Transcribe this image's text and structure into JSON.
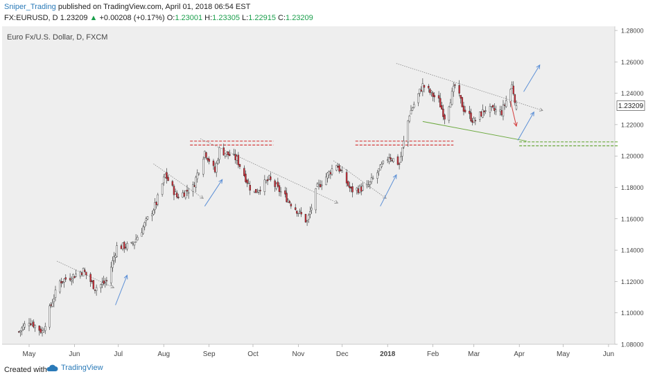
{
  "header": {
    "author": "Sniper_Trading",
    "published_text": "published on TradingView.com, April 01, 2018 06:54 EST",
    "symbol": "FX:EURUSD, D",
    "last": "1.23209",
    "change_arrow": "▲",
    "change": "+0.00208 (+0.17%)",
    "o_label": "O:",
    "o_val": "1.23001",
    "h_label": "H:",
    "h_val": "1.23305",
    "l_label": "L:",
    "l_val": "1.22915",
    "c_label": "C:",
    "c_val": "1.23209"
  },
  "footer": {
    "created_with": "Created with",
    "brand": "TradingView",
    "brand_icon": "tradingview-cloud-icon"
  },
  "colors": {
    "up": "#ffffff",
    "down": "#d0303a",
    "wick": "#222222",
    "bg": "#eeeeee",
    "support": "#d43c3c",
    "support2": "#6aa83c",
    "arrow": "#5b8fd6",
    "trend": "#888888",
    "price_tag": "#ffffff"
  },
  "chart_data": {
    "type": "candlestick",
    "title": "Euro Fx/U.S. Dollar, D, FXCM",
    "last_price": 1.23209,
    "ylim": [
      1.08,
      1.28
    ],
    "yticks": [
      "1.28000",
      "1.26000",
      "1.24000",
      "1.22000",
      "1.20000",
      "1.18000",
      "1.16000",
      "1.14000",
      "1.12000",
      "1.10000",
      "1.08000"
    ],
    "xticks": [
      "May",
      "Jun",
      "Jul",
      "Aug",
      "Sep",
      "Oct",
      "Nov",
      "Dec",
      "2018",
      "Feb",
      "Mar",
      "Apr",
      "May",
      "Jun"
    ],
    "xtick_dates": [
      "2017-05-01",
      "2017-06-01",
      "2017-07-01",
      "2017-08-01",
      "2017-09-01",
      "2017-10-01",
      "2017-11-01",
      "2017-12-01",
      "2018-01-01",
      "2018-02-01",
      "2018-03-01",
      "2018-04-01",
      "2018-05-01",
      "2018-06-01"
    ],
    "price_path": [
      [
        "2017-04-24",
        1.088
      ],
      [
        "2017-05-01",
        1.095
      ],
      [
        "2017-05-10",
        1.088
      ],
      [
        "2017-05-16",
        1.105
      ],
      [
        "2017-05-22",
        1.12
      ],
      [
        "2017-06-01",
        1.124
      ],
      [
        "2017-06-07",
        1.127
      ],
      [
        "2017-06-15",
        1.116
      ],
      [
        "2017-06-23",
        1.12
      ],
      [
        "2017-06-30",
        1.142
      ],
      [
        "2017-07-10",
        1.143
      ],
      [
        "2017-07-17",
        1.153
      ],
      [
        "2017-07-27",
        1.17
      ],
      [
        "2017-08-02",
        1.188
      ],
      [
        "2017-08-10",
        1.174
      ],
      [
        "2017-08-21",
        1.18
      ],
      [
        "2017-08-29",
        1.203
      ],
      [
        "2017-09-05",
        1.19
      ],
      [
        "2017-09-08",
        1.204
      ],
      [
        "2017-09-20",
        1.198
      ],
      [
        "2017-10-01",
        1.176
      ],
      [
        "2017-10-12",
        1.185
      ],
      [
        "2017-10-25",
        1.172
      ],
      [
        "2017-11-07",
        1.158
      ],
      [
        "2017-11-14",
        1.18
      ],
      [
        "2017-11-27",
        1.195
      ],
      [
        "2017-12-07",
        1.178
      ],
      [
        "2017-12-18",
        1.18
      ],
      [
        "2018-01-02",
        1.2
      ],
      [
        "2018-01-09",
        1.195
      ],
      [
        "2018-01-16",
        1.227
      ],
      [
        "2018-01-25",
        1.245
      ],
      [
        "2018-02-05",
        1.235
      ],
      [
        "2018-02-09",
        1.225
      ],
      [
        "2018-02-16",
        1.245
      ],
      [
        "2018-02-22",
        1.23
      ],
      [
        "2018-03-01",
        1.222
      ],
      [
        "2018-03-09",
        1.23
      ],
      [
        "2018-03-20",
        1.228
      ],
      [
        "2018-03-27",
        1.245
      ],
      [
        "2018-03-30",
        1.2321
      ]
    ],
    "levels": [
      {
        "y": [
          1.207,
          1.2095
        ],
        "from": "2017-08-19",
        "to": "2017-10-15",
        "color": "support"
      },
      {
        "y": [
          1.207,
          1.2095
        ],
        "from": "2017-12-10",
        "to": "2018-02-15",
        "color": "support"
      },
      {
        "y": [
          1.2065,
          1.209
        ],
        "from": "2018-04-01",
        "to": "2018-06-08",
        "color": "support2"
      }
    ],
    "trendlines": [
      {
        "from": [
          "2017-05-20",
          1.133
        ],
        "to": [
          "2017-06-28",
          1.116
        ]
      },
      {
        "from": [
          "2017-07-25",
          1.195
        ],
        "to": [
          "2017-08-28",
          1.173
        ]
      },
      {
        "from": [
          "2017-08-26",
          1.211
        ],
        "to": [
          "2017-11-28",
          1.17
        ]
      },
      {
        "from": [
          "2017-11-25",
          1.197
        ],
        "to": [
          "2017-12-31",
          1.173
        ]
      },
      {
        "from": [
          "2018-01-07",
          1.259
        ],
        "to": [
          "2018-04-17",
          1.229
        ]
      }
    ],
    "green_line": {
      "from": [
        "2018-01-25",
        1.222
      ],
      "to": [
        "2018-04-06",
        1.2095
      ]
    },
    "arrows": [
      {
        "from": [
          "2017-06-29",
          1.105
        ],
        "to": [
          "2017-07-07",
          1.124
        ],
        "color": "arrow"
      },
      {
        "from": [
          "2017-08-29",
          1.168
        ],
        "to": [
          "2017-09-10",
          1.185
        ],
        "color": "arrow"
      },
      {
        "from": [
          "2017-12-27",
          1.168
        ],
        "to": [
          "2018-01-07",
          1.188
        ],
        "color": "arrow"
      },
      {
        "from": [
          "2018-03-26",
          1.235
        ],
        "to": [
          "2018-03-30",
          1.219
        ],
        "color": "support"
      },
      {
        "from": [
          "2018-03-31",
          1.21
        ],
        "to": [
          "2018-04-11",
          1.228
        ],
        "color": "arrow"
      },
      {
        "from": [
          "2018-04-04",
          1.241
        ],
        "to": [
          "2018-04-15",
          1.258
        ],
        "color": "arrow"
      }
    ]
  }
}
